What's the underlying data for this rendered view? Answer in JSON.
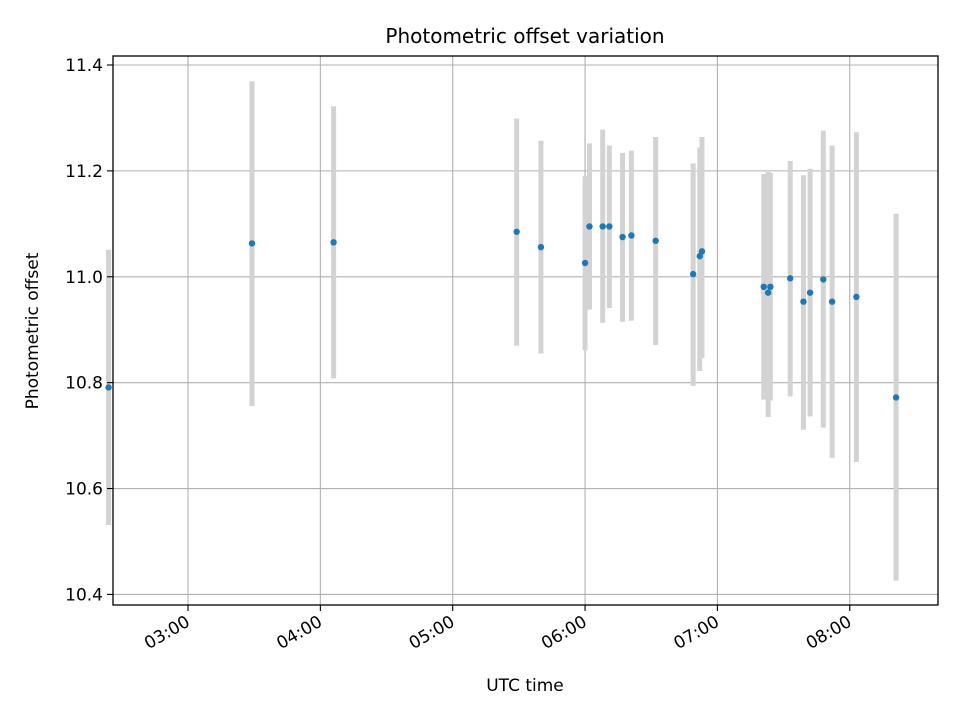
{
  "chart_data": {
    "type": "scatter",
    "title": "Photometric offset variation",
    "xlabel": "UTC time",
    "ylabel": "Photometric offset",
    "xlim": [
      "02:26",
      "08:40"
    ],
    "ylim": [
      10.38,
      11.417
    ],
    "x_ticks": [
      "03:00",
      "04:00",
      "05:00",
      "06:00",
      "07:00",
      "08:00"
    ],
    "y_ticks": [
      10.4,
      10.6,
      10.8,
      11.0,
      11.2,
      11.4
    ],
    "y_tick_labels": [
      "10.4",
      "10.6",
      "10.8",
      "11.0",
      "11.2",
      "11.4"
    ],
    "grid": true,
    "colors": {
      "marker": "#1f77b4",
      "errorbar": "#d3d3d3",
      "grid": "#b0b0b0"
    },
    "points": [
      {
        "time": "02:24",
        "y": 10.791,
        "err_low": 10.531,
        "err_high": 11.051
      },
      {
        "time": "03:29",
        "y": 11.063,
        "err_low": 10.756,
        "err_high": 11.369
      },
      {
        "time": "04:06",
        "y": 11.065,
        "err_low": 10.808,
        "err_high": 11.322
      },
      {
        "time": "05:29",
        "y": 11.085,
        "err_low": 10.87,
        "err_high": 11.299
      },
      {
        "time": "05:40",
        "y": 11.056,
        "err_low": 10.855,
        "err_high": 11.257
      },
      {
        "time": "06:00",
        "y": 11.026,
        "err_low": 10.861,
        "err_high": 11.19
      },
      {
        "time": "06:02",
        "y": 11.095,
        "err_low": 10.938,
        "err_high": 11.252
      },
      {
        "time": "06:08",
        "y": 11.095,
        "err_low": 10.913,
        "err_high": 11.278
      },
      {
        "time": "06:11",
        "y": 11.095,
        "err_low": 10.941,
        "err_high": 11.248
      },
      {
        "time": "06:17",
        "y": 11.075,
        "err_low": 10.915,
        "err_high": 11.234
      },
      {
        "time": "06:21",
        "y": 11.078,
        "err_low": 10.917,
        "err_high": 11.238
      },
      {
        "time": "06:32",
        "y": 11.068,
        "err_low": 10.871,
        "err_high": 11.264
      },
      {
        "time": "06:49",
        "y": 11.005,
        "err_low": 10.794,
        "err_high": 11.214
      },
      {
        "time": "06:52",
        "y": 11.039,
        "err_low": 10.822,
        "err_high": 11.244
      },
      {
        "time": "06:53",
        "y": 11.048,
        "err_low": 10.846,
        "err_high": 11.264
      },
      {
        "time": "07:21",
        "y": 10.981,
        "err_low": 10.768,
        "err_high": 11.194
      },
      {
        "time": "07:23",
        "y": 10.97,
        "err_low": 10.735,
        "err_high": 11.198
      },
      {
        "time": "07:24",
        "y": 10.981,
        "err_low": 10.766,
        "err_high": 11.196
      },
      {
        "time": "07:33",
        "y": 10.997,
        "err_low": 10.774,
        "err_high": 11.219
      },
      {
        "time": "07:39",
        "y": 10.953,
        "err_low": 10.711,
        "err_high": 11.192
      },
      {
        "time": "07:42",
        "y": 10.97,
        "err_low": 10.736,
        "err_high": 11.204
      },
      {
        "time": "07:48",
        "y": 10.995,
        "err_low": 10.715,
        "err_high": 11.276
      },
      {
        "time": "07:52",
        "y": 10.953,
        "err_low": 10.658,
        "err_high": 11.248
      },
      {
        "time": "08:03",
        "y": 10.962,
        "err_low": 10.65,
        "err_high": 11.273
      },
      {
        "time": "08:21",
        "y": 10.772,
        "err_low": 10.426,
        "err_high": 11.119
      }
    ]
  }
}
